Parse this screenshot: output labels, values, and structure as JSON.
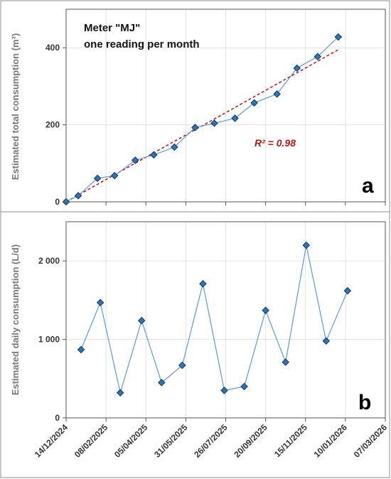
{
  "chart_data": [
    {
      "id": "a",
      "type": "line",
      "panel_label": "a",
      "annotation_lines": [
        "Meter \"MJ\"",
        "one reading per month"
      ],
      "ylabel": "Estimated total consumption (m³)",
      "ylim": [
        0,
        500
      ],
      "yticks": [
        0,
        200,
        400
      ],
      "ytick_labels": [
        "0",
        "200",
        "400"
      ],
      "grid": true,
      "series": [
        {
          "color": "#5b9bd5",
          "marker_color": "#2f75b5",
          "points": [
            [
              "2024-12-14",
              0
            ],
            [
              "2024-12-31",
              16
            ],
            [
              "2025-01-27",
              61
            ],
            [
              "2025-02-20",
              68
            ],
            [
              "2025-03-21",
              108
            ],
            [
              "2025-04-16",
              122
            ],
            [
              "2025-05-15",
              142
            ],
            [
              "2025-06-13",
              193
            ],
            [
              "2025-07-10",
              204
            ],
            [
              "2025-08-08",
              217
            ],
            [
              "2025-09-04",
              257
            ],
            [
              "2025-10-06",
              280
            ],
            [
              "2025-11-03",
              347
            ],
            [
              "2025-12-02",
              377
            ],
            [
              "2025-12-31",
              428
            ]
          ]
        }
      ],
      "trendline": {
        "color": "#c00000",
        "points": [
          [
            "2024-12-14",
            0
          ],
          [
            "2025-12-31",
            395
          ]
        ],
        "r2_label": "R² = 0.98"
      }
    },
    {
      "id": "b",
      "type": "line",
      "panel_label": "b",
      "ylabel": "Estimated daily consumption (L/d)",
      "ylim": [
        0,
        2500
      ],
      "yticks": [
        0,
        1000,
        2000
      ],
      "ytick_labels": [
        "0",
        "1 000",
        "2 000"
      ],
      "grid": true,
      "series": [
        {
          "color": "#5b9bd5",
          "marker_color": "#2f75b5",
          "points": [
            [
              "2025-01-04",
              870
            ],
            [
              "2025-01-31",
              1470
            ],
            [
              "2025-02-28",
              320
            ],
            [
              "2025-03-30",
              1240
            ],
            [
              "2025-04-27",
              450
            ],
            [
              "2025-05-26",
              670
            ],
            [
              "2025-06-24",
              1710
            ],
            [
              "2025-07-24",
              350
            ],
            [
              "2025-08-21",
              400
            ],
            [
              "2025-09-20",
              1370
            ],
            [
              "2025-10-18",
              710
            ],
            [
              "2025-11-16",
              2200
            ],
            [
              "2025-12-14",
              980
            ],
            [
              "2026-01-13",
              1620
            ]
          ]
        }
      ]
    }
  ],
  "xaxis": {
    "xlim": [
      "2024-12-14",
      "2026-03-07"
    ],
    "ticks": [
      "2024-12-14",
      "2025-02-08",
      "2025-04-05",
      "2025-05-31",
      "2025-07-26",
      "2025-09-20",
      "2025-11-15",
      "2026-01-10",
      "2026-03-07"
    ],
    "tick_labels": [
      "14/12/2024",
      "08/02/2025",
      "05/04/2025",
      "31/05/2025",
      "26/07/2025",
      "20/09/2025",
      "15/11/2025",
      "10/01/2026",
      "07/03/2026"
    ]
  }
}
